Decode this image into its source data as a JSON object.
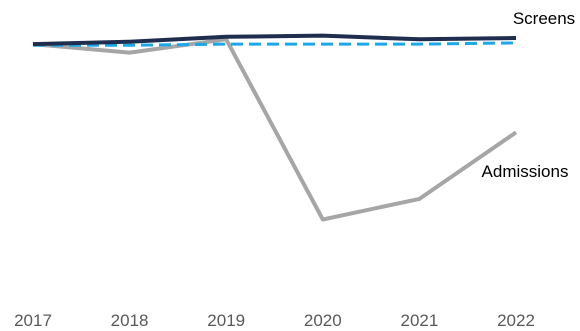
{
  "chart_data": {
    "type": "line",
    "title": "",
    "xlabel": "",
    "ylabel": "",
    "categories": [
      "2017",
      "2018",
      "2019",
      "2020",
      "2021",
      "2022"
    ],
    "ylim": [
      0,
      1.05
    ],
    "grid": false,
    "legend": "none (series labelled inline)",
    "series": [
      {
        "name": "Screens",
        "values": [
          1.0,
          1.01,
          1.03,
          1.035,
          1.02,
          1.025
        ],
        "color": "#1f2d4f",
        "dash": false
      },
      {
        "name": "",
        "values": [
          0.995,
          0.995,
          1.0,
          1.0,
          1.0,
          1.005
        ],
        "color": "#1ea7e8",
        "dash": true
      },
      {
        "name": "Admissions",
        "values": [
          1.0,
          0.965,
          1.02,
          0.275,
          0.36,
          0.635
        ],
        "color": "#a6a6a6",
        "dash": false
      }
    ]
  }
}
